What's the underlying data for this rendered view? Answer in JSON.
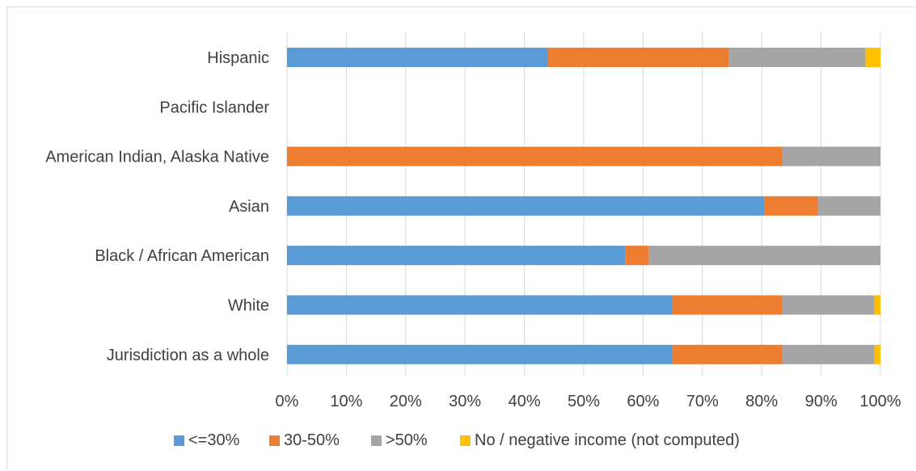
{
  "chart_data": {
    "type": "bar",
    "orientation": "horizontal",
    "stacked": true,
    "normalized": true,
    "title": "",
    "xlabel": "",
    "ylabel": "",
    "xlim": [
      0,
      1
    ],
    "x_ticks": [
      "0%",
      "10%",
      "20%",
      "30%",
      "40%",
      "50%",
      "60%",
      "70%",
      "80%",
      "90%",
      "100%"
    ],
    "grid": true,
    "legend_position": "bottom",
    "categories": [
      "Hispanic",
      "Pacific Islander",
      "American Indian, Alaska Native",
      "Asian",
      "Black / African American",
      "White",
      "Jurisdiction as a whole"
    ],
    "series": [
      {
        "name": "<=30%",
        "color": "#5b9bd5",
        "values": [
          0.44,
          0,
          0,
          0.805,
          0.57,
          0.65,
          0.65
        ]
      },
      {
        "name": "30-50%",
        "color": "#ed7d31",
        "values": [
          0.305,
          0,
          0.835,
          0.09,
          0.04,
          0.185,
          0.185
        ]
      },
      {
        "name": ">50%",
        "color": "#a5a5a5",
        "values": [
          0.23,
          0,
          0.165,
          0.105,
          0.39,
          0.155,
          0.155
        ]
      },
      {
        "name": "No / negative income (not computed)",
        "color": "#ffc000",
        "values": [
          0.025,
          0,
          0,
          0,
          0,
          0.01,
          0.01
        ]
      }
    ]
  }
}
